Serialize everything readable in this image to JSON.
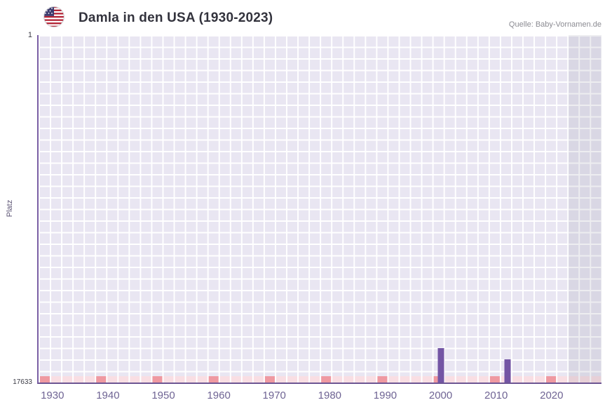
{
  "header": {
    "title": "Damla in den USA (1930-2023)",
    "source": "Quelle: Baby-Vornamen.de"
  },
  "chart_data": {
    "type": "bar",
    "title": "Damla in den USA (1930-2023)",
    "ylabel": "Platz",
    "y_axis": {
      "ticks": [
        "1",
        "17633"
      ],
      "min": 1,
      "max": 17633,
      "inverted": true
    },
    "x_axis": {
      "first_year": 1930,
      "last_year": 2023,
      "ticks": [
        "1930",
        "1940",
        "1950",
        "1960",
        "1970",
        "1980",
        "1990",
        "2000",
        "2010",
        "2020"
      ]
    },
    "series": [
      {
        "name": "Platz",
        "points": [
          {
            "year": 2000,
            "rank": 15900
          },
          {
            "year": 2012,
            "rank": 16450
          }
        ]
      }
    ],
    "unranked_baseline_strip": {
      "description": "rosa Markierung am unteren Rand fuer Jahre ohne Platzierung, dunklere Markierung alle 10 Jahre",
      "color": "#f9dee3",
      "decade_mark_color": "#ef99a1"
    },
    "no_data_region": {
      "from_year": 2023
    },
    "grid": true,
    "legend_position": "none",
    "colors": {
      "bar": "#7355a4",
      "axis": "#7a5fa5",
      "grid_cell": "#e9e6f2",
      "grid_line": "#ffffff",
      "x_tick_label": "#6f6494"
    }
  }
}
